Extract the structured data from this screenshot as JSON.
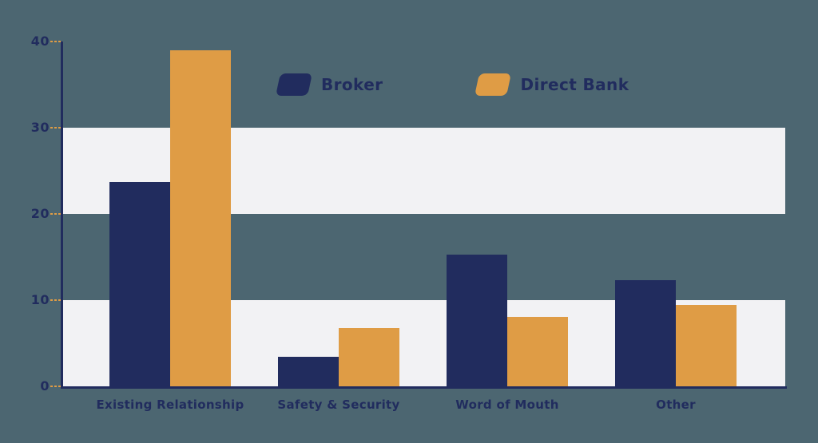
{
  "background": {
    "page_color": "#4c6671",
    "band_color": "#f2f2f4"
  },
  "chart_data": {
    "type": "bar",
    "categories": [
      "Existing Relationship",
      "Safety & Security",
      "Word of Mouth",
      "Other"
    ],
    "series": [
      {
        "name": "Broker",
        "color": "#212c5e",
        "values": [
          23.7,
          3.4,
          15.3,
          12.3
        ]
      },
      {
        "name": "Direct Bank",
        "color": "#df9c45",
        "values": [
          39.0,
          6.8,
          8.1,
          9.4
        ]
      }
    ],
    "title": "",
    "xlabel": "",
    "ylabel": "",
    "ylim": [
      0,
      40
    ],
    "yticks": [
      0,
      10,
      20,
      30,
      40
    ],
    "grid": "alternating horizontal bands (0-10 and 20-30 light, others transparent)",
    "legend_position": "top-center",
    "axis_color": "#212c5e",
    "tick_color": "#df9c45",
    "label_color": "#212c5e"
  }
}
